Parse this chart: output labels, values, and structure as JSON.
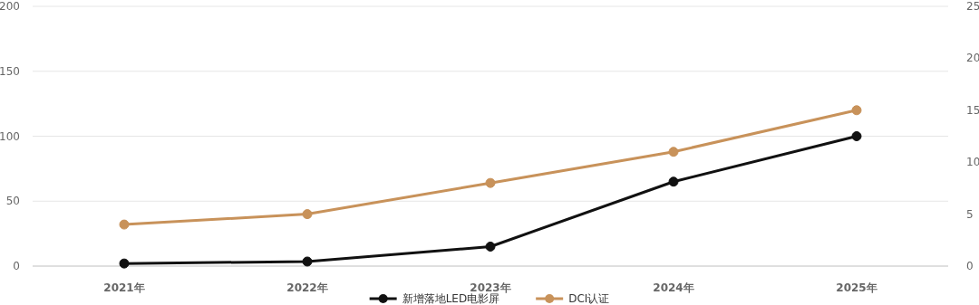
{
  "chart_data": {
    "type": "line",
    "categories": [
      "2021年",
      "2022年",
      "2023年",
      "2024年",
      "2025年"
    ],
    "series": [
      {
        "name": "新增落地LED电影屏",
        "color": "#111111",
        "values": [
          2,
          3.5,
          15,
          65,
          100
        ]
      },
      {
        "name": "DCI认证",
        "color": "#c8925a",
        "axis": "y2",
        "values": [
          4,
          5,
          8,
          11,
          15
        ]
      }
    ],
    "ylim": [
      0,
      200
    ],
    "yticks": [
      0,
      50,
      100,
      150,
      200
    ],
    "y2lim": [
      0,
      25
    ],
    "y2ticks": [
      0,
      5,
      10,
      15,
      20,
      25
    ],
    "grid": "y",
    "legend": "bottom",
    "marker": "circle",
    "line_style": "solid"
  }
}
